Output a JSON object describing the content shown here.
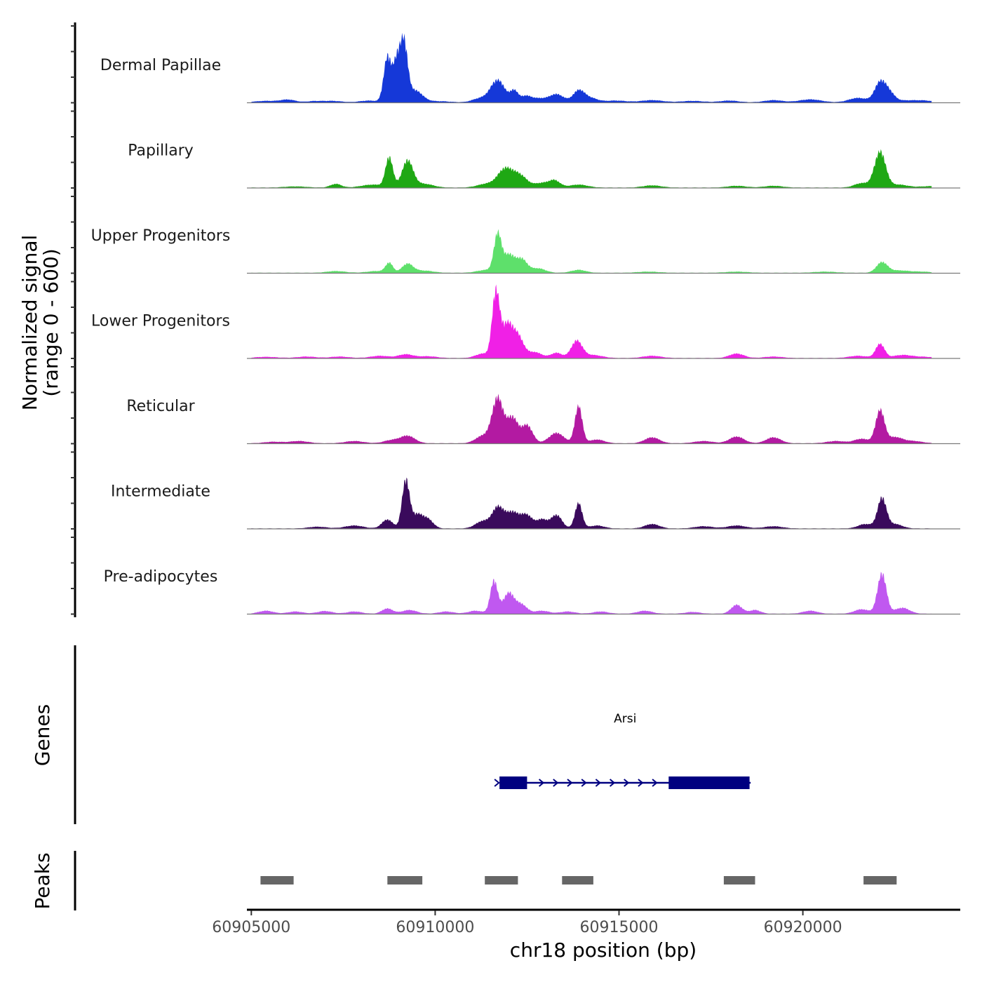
{
  "chart_data": {
    "type": "area",
    "title": "",
    "ylabel_line1": "Normalized signal",
    "ylabel_line2": "(range 0 - 600)",
    "ylim": [
      0,
      600
    ],
    "xlabel": "chr18 position (bp)",
    "xlim": [
      60904880,
      60924280
    ],
    "x_ticks": [
      60905000,
      60910000,
      60915000,
      60920000
    ],
    "x_tick_labels": [
      "60905000",
      "60910000",
      "60915000",
      "60920000"
    ],
    "genes_label": "Genes",
    "peaks_label": "Peaks",
    "tracks": [
      {
        "name": "Dermal Papillae",
        "color": "#1538d8",
        "peaks": [
          [
            60905400,
            10,
            300
          ],
          [
            60906000,
            18,
            200
          ],
          [
            60906700,
            8,
            200
          ],
          [
            60907200,
            10,
            250
          ],
          [
            60908200,
            12,
            250
          ],
          [
            60908700,
            300,
            100
          ],
          [
            60908950,
            260,
            100
          ],
          [
            60909150,
            380,
            100
          ],
          [
            60909450,
            80,
            200
          ],
          [
            60910100,
            8,
            300
          ],
          [
            60911200,
            25,
            200
          ],
          [
            60911700,
            150,
            200
          ],
          [
            60912150,
            70,
            100
          ],
          [
            60912450,
            40,
            150
          ],
          [
            60912800,
            25,
            200
          ],
          [
            60913300,
            55,
            200
          ],
          [
            60913900,
            75,
            150
          ],
          [
            60914200,
            30,
            200
          ],
          [
            60914900,
            12,
            300
          ],
          [
            60915900,
            15,
            300
          ],
          [
            60917000,
            10,
            300
          ],
          [
            60918000,
            12,
            250
          ],
          [
            60919200,
            15,
            250
          ],
          [
            60920200,
            20,
            300
          ],
          [
            60921500,
            30,
            250
          ],
          [
            60922100,
            130,
            150
          ],
          [
            60922350,
            60,
            150
          ],
          [
            60922800,
            12,
            250
          ],
          [
            60923300,
            12,
            250
          ]
        ]
      },
      {
        "name": "Papillary",
        "color": "#1fa814",
        "peaks": [
          [
            60906200,
            8,
            300
          ],
          [
            60907300,
            25,
            150
          ],
          [
            60908300,
            20,
            300
          ],
          [
            60908750,
            200,
            100
          ],
          [
            60909250,
            180,
            150
          ],
          [
            60909700,
            25,
            250
          ],
          [
            60911400,
            25,
            250
          ],
          [
            60911900,
            120,
            200
          ],
          [
            60912300,
            80,
            200
          ],
          [
            60912900,
            30,
            200
          ],
          [
            60913250,
            45,
            150
          ],
          [
            60913900,
            20,
            250
          ],
          [
            60915900,
            15,
            250
          ],
          [
            60918200,
            12,
            250
          ],
          [
            60919200,
            12,
            250
          ],
          [
            60921600,
            30,
            200
          ],
          [
            60922100,
            240,
            150
          ],
          [
            60922600,
            20,
            250
          ],
          [
            60923500,
            10,
            300
          ]
        ]
      },
      {
        "name": "Upper Progenitors",
        "color": "#5ee06b",
        "peaks": [
          [
            60907300,
            12,
            250
          ],
          [
            60908400,
            12,
            250
          ],
          [
            60908750,
            65,
            100
          ],
          [
            60909250,
            60,
            150
          ],
          [
            60909700,
            15,
            250
          ],
          [
            60911400,
            20,
            250
          ],
          [
            60911700,
            250,
            100
          ],
          [
            60912000,
            120,
            150
          ],
          [
            60912350,
            90,
            150
          ],
          [
            60912800,
            30,
            200
          ],
          [
            60913900,
            20,
            200
          ],
          [
            60915800,
            8,
            300
          ],
          [
            60918200,
            8,
            300
          ],
          [
            60920600,
            8,
            300
          ],
          [
            60922150,
            70,
            150
          ],
          [
            60922600,
            15,
            250
          ],
          [
            60923200,
            8,
            300
          ]
        ]
      },
      {
        "name": "Lower Progenitors",
        "color": "#f020e6",
        "peaks": [
          [
            60905400,
            8,
            300
          ],
          [
            60906500,
            10,
            250
          ],
          [
            60907400,
            10,
            250
          ],
          [
            60908500,
            15,
            250
          ],
          [
            60909200,
            25,
            200
          ],
          [
            60909800,
            12,
            250
          ],
          [
            60911300,
            30,
            200
          ],
          [
            60911650,
            430,
            100
          ],
          [
            60911950,
            220,
            150
          ],
          [
            60912250,
            140,
            150
          ],
          [
            60912700,
            40,
            200
          ],
          [
            60913300,
            35,
            150
          ],
          [
            60913850,
            115,
            150
          ],
          [
            60914300,
            20,
            250
          ],
          [
            60915900,
            15,
            250
          ],
          [
            60918200,
            30,
            200
          ],
          [
            60919200,
            10,
            250
          ],
          [
            60921500,
            15,
            250
          ],
          [
            60922100,
            95,
            120
          ],
          [
            60922700,
            20,
            250
          ],
          [
            60923300,
            8,
            300
          ]
        ]
      },
      {
        "name": "Reticular",
        "color": "#b31aa2",
        "peaks": [
          [
            60905600,
            10,
            250
          ],
          [
            60906300,
            15,
            250
          ],
          [
            60907800,
            15,
            250
          ],
          [
            60908800,
            20,
            200
          ],
          [
            60909250,
            50,
            200
          ],
          [
            60911300,
            50,
            200
          ],
          [
            60911700,
            300,
            150
          ],
          [
            60912100,
            170,
            150
          ],
          [
            60912500,
            120,
            150
          ],
          [
            60913300,
            70,
            200
          ],
          [
            60913900,
            250,
            100
          ],
          [
            60914400,
            25,
            200
          ],
          [
            60915900,
            40,
            200
          ],
          [
            60917300,
            15,
            250
          ],
          [
            60918200,
            45,
            200
          ],
          [
            60919200,
            40,
            200
          ],
          [
            60920900,
            15,
            250
          ],
          [
            60921600,
            30,
            200
          ],
          [
            60922100,
            220,
            120
          ],
          [
            60922500,
            40,
            200
          ],
          [
            60923000,
            15,
            250
          ]
        ]
      },
      {
        "name": "Intermediate",
        "color": "#3a0a5c",
        "peaks": [
          [
            60906800,
            12,
            250
          ],
          [
            60907800,
            20,
            250
          ],
          [
            60908700,
            60,
            150
          ],
          [
            60909200,
            320,
            100
          ],
          [
            60909500,
            90,
            150
          ],
          [
            60909800,
            60,
            150
          ],
          [
            60911300,
            50,
            200
          ],
          [
            60911700,
            130,
            150
          ],
          [
            60912100,
            110,
            200
          ],
          [
            60912500,
            80,
            150
          ],
          [
            60912900,
            60,
            150
          ],
          [
            60913300,
            90,
            150
          ],
          [
            60913900,
            170,
            100
          ],
          [
            60914400,
            20,
            200
          ],
          [
            60915900,
            30,
            200
          ],
          [
            60917300,
            15,
            250
          ],
          [
            60918200,
            20,
            250
          ],
          [
            60919200,
            15,
            250
          ],
          [
            60921700,
            30,
            200
          ],
          [
            60922150,
            200,
            120
          ],
          [
            60922500,
            30,
            200
          ]
        ]
      },
      {
        "name": "Pre-adipocytes",
        "color": "#c058f0",
        "peaks": [
          [
            60905400,
            20,
            200
          ],
          [
            60906200,
            15,
            200
          ],
          [
            60907000,
            18,
            200
          ],
          [
            60907800,
            15,
            200
          ],
          [
            60908700,
            35,
            150
          ],
          [
            60909300,
            25,
            200
          ],
          [
            60910300,
            15,
            200
          ],
          [
            60911100,
            20,
            200
          ],
          [
            60911600,
            220,
            100
          ],
          [
            60912000,
            140,
            150
          ],
          [
            60912350,
            60,
            150
          ],
          [
            60912900,
            20,
            200
          ],
          [
            60913600,
            15,
            200
          ],
          [
            60914500,
            15,
            200
          ],
          [
            60915700,
            20,
            200
          ],
          [
            60917000,
            12,
            200
          ],
          [
            60918200,
            60,
            150
          ],
          [
            60918700,
            25,
            150
          ],
          [
            60920200,
            20,
            200
          ],
          [
            60921600,
            30,
            200
          ],
          [
            60922150,
            270,
            120
          ],
          [
            60922700,
            40,
            200
          ]
        ]
      }
    ],
    "gene": {
      "name": "Arsi",
      "start": 60911750,
      "end": 60918580,
      "strand": "+",
      "exons": [
        [
          60911750,
          60912500
        ],
        [
          60916350,
          60918550
        ]
      ],
      "color": "#000080"
    },
    "peak_regions": [
      [
        60905250,
        60906150
      ],
      [
        60908700,
        60909650
      ],
      [
        60911350,
        60912250
      ],
      [
        60913450,
        60914300
      ],
      [
        60917850,
        60918700
      ],
      [
        60921650,
        60922550
      ]
    ],
    "peak_color": "#666666"
  }
}
